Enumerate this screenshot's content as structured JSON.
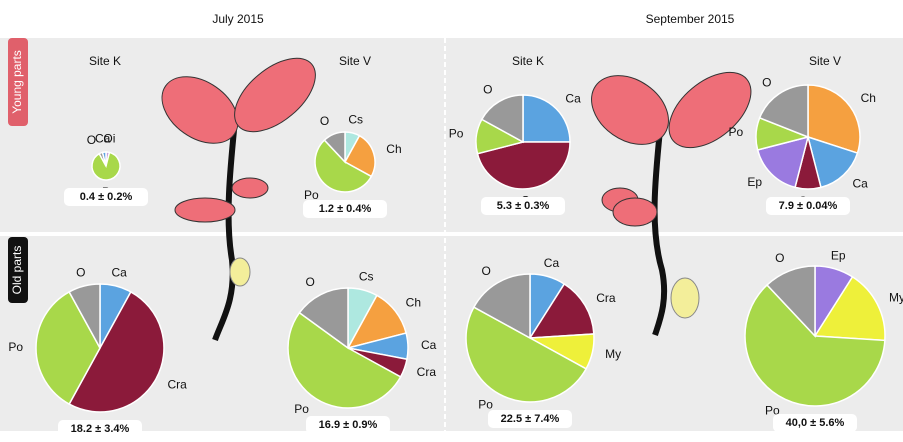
{
  "panel": {
    "columns": [
      "July 2015",
      "September 2015"
    ],
    "rows": [
      "Young parts",
      "Old parts"
    ]
  },
  "chart_data": [
    {
      "type": "pie",
      "title": "Site K",
      "categories": [
        "Oi",
        "Po",
        "O",
        "Ca"
      ],
      "values": [
        4,
        88,
        4,
        4
      ],
      "colors": [
        "#c9a0dc",
        "#a8d84a",
        "#999999",
        "#5ba3e0"
      ],
      "annotation": "0.4 ± 0.2%"
    },
    {
      "type": "pie",
      "title": "Site V",
      "categories": [
        "Cs",
        "Ch",
        "Po",
        "O"
      ],
      "values": [
        8,
        25,
        55,
        12
      ],
      "colors": [
        "#aee8e0",
        "#f5a040",
        "#a8d84a",
        "#999999"
      ],
      "annotation": "1.2 ± 0.4%"
    },
    {
      "type": "pie",
      "title": "Site K",
      "categories": [
        "Ca",
        "Cra",
        "Po",
        "O"
      ],
      "values": [
        25,
        46,
        12,
        17
      ],
      "colors": [
        "#5ba3e0",
        "#8b1a3a",
        "#a8d84a",
        "#999999"
      ],
      "annotation": "5.3 ± 0.3%"
    },
    {
      "type": "pie",
      "title": "Site V",
      "categories": [
        "Ch",
        "Ca",
        "Cra",
        "Ep",
        "Po",
        "O"
      ],
      "values": [
        30,
        16,
        8,
        17,
        10,
        19
      ],
      "colors": [
        "#f5a040",
        "#5ba3e0",
        "#8b1a3a",
        "#9a7ae0",
        "#a8d84a",
        "#999999"
      ],
      "annotation": "7.9 ± 0.04%"
    },
    {
      "type": "pie",
      "categories": [
        "Ca",
        "Cra",
        "Po",
        "O"
      ],
      "values": [
        8,
        50,
        34,
        8
      ],
      "colors": [
        "#5ba3e0",
        "#8b1a3a",
        "#a8d84a",
        "#999999"
      ],
      "annotation": "18.2 ± 3.4%"
    },
    {
      "type": "pie",
      "categories": [
        "Cs",
        "Ch",
        "Ca",
        "Cra",
        "Po",
        "O"
      ],
      "values": [
        8,
        13,
        7,
        5,
        52,
        15
      ],
      "colors": [
        "#aee8e0",
        "#f5a040",
        "#5ba3e0",
        "#8b1a3a",
        "#a8d84a",
        "#999999"
      ],
      "annotation": "16.9 ± 0.9%"
    },
    {
      "type": "pie",
      "categories": [
        "Ca",
        "Cra",
        "My",
        "Po",
        "O"
      ],
      "values": [
        9,
        15,
        9,
        50,
        17
      ],
      "colors": [
        "#5ba3e0",
        "#8b1a3a",
        "#eef03a",
        "#a8d84a",
        "#999999"
      ],
      "annotation": "22.5 ± 7.4%"
    },
    {
      "type": "pie",
      "categories": [
        "Ep",
        "My",
        "Po",
        "O"
      ],
      "values": [
        9,
        17,
        62,
        12
      ],
      "colors": [
        "#9a7ae0",
        "#eef03a",
        "#a8d84a",
        "#999999"
      ],
      "annotation": "40,0 ± 5.6%"
    }
  ]
}
